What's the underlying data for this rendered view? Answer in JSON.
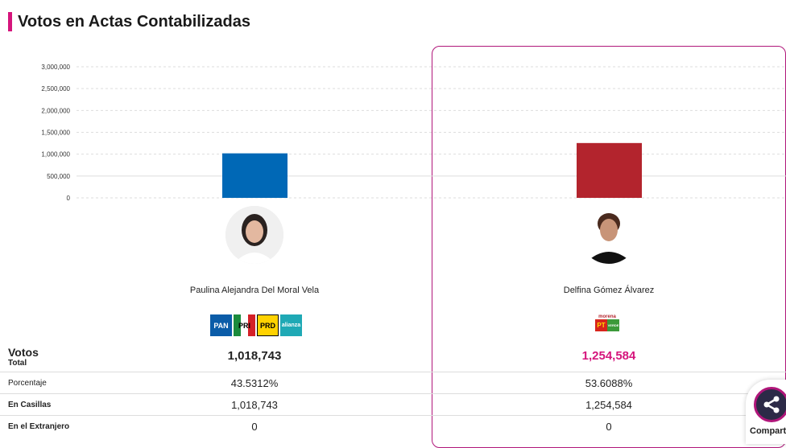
{
  "title": "Votos en Actas Contabilizadas",
  "colors": {
    "accent": "#d5157c",
    "c1": "#0068b6",
    "c2": "#b3242d"
  },
  "chart_data": {
    "type": "bar",
    "categories": [
      "Paulina Alejandra Del Moral Vela",
      "Delfina Gómez Álvarez"
    ],
    "values": [
      1018743,
      1254584
    ],
    "ylim": [
      0,
      3000000
    ],
    "yticks": [
      "0",
      "500,000",
      "1,000,000",
      "1,500,000",
      "2,000,000",
      "2,500,000",
      "3,000,000"
    ],
    "colors": [
      "#0068b6",
      "#b3242d"
    ],
    "grid": true
  },
  "candidates": [
    {
      "name": "Paulina Alejandra Del Moral Vela",
      "parties": [
        "PAN",
        "PRI",
        "PRD",
        "alianza"
      ],
      "total": "1,018,743",
      "pct": "43.5312%",
      "casillas": "1,018,743",
      "extranjero": "0"
    },
    {
      "name": "Delfina Gómez Álvarez",
      "parties": [
        "morena",
        "PT",
        "VERDE"
      ],
      "total": "1,254,584",
      "pct": "53.6088%",
      "casillas": "1,254,584",
      "extranjero": "0"
    }
  ],
  "rows": {
    "votos": "Votos",
    "total": "Total",
    "pct": "Porcentaje",
    "casillas": "En Casillas",
    "extranjero": "En el Extranjero"
  },
  "share": "Compartir"
}
